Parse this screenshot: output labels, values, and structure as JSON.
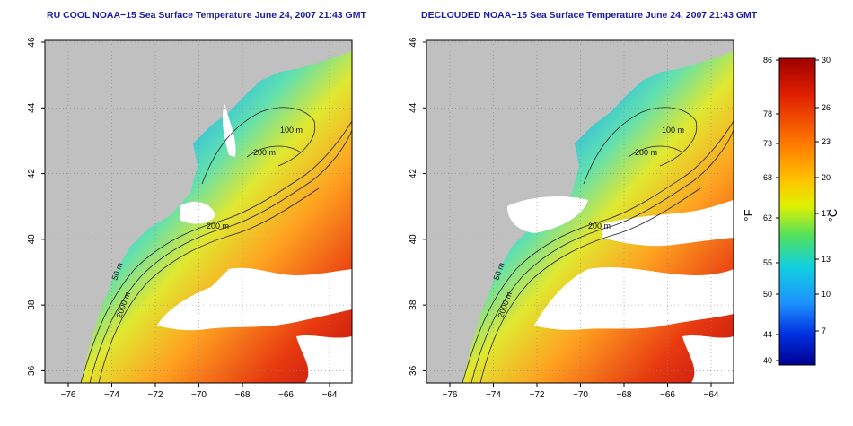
{
  "maps": [
    {
      "id": "left",
      "title": "RU COOL NOAA−15 Sea Surface Temperature June 24, 2007 21:43 GMT",
      "contour_labels": [
        "200 m",
        "100 m",
        "200 m",
        "50 m",
        "2000 m"
      ]
    },
    {
      "id": "right",
      "title": "DECLOUDED NOAA−15 Sea Surface Temperature June 24, 2007 21:43 GMT",
      "contour_labels": [
        "200 m",
        "100 m",
        "200 m",
        "50 m",
        "2000 m"
      ]
    }
  ],
  "axes": {
    "x_ticks": [
      "−76",
      "−74",
      "−72",
      "−70",
      "−68",
      "−66",
      "−64"
    ],
    "y_ticks": [
      "46",
      "44",
      "42",
      "40",
      "38",
      "36"
    ]
  },
  "colorbar": {
    "fahrenheit_label": "°F",
    "celsius_label": "°C",
    "fahrenheit_ticks": [
      "86",
      "78",
      "73",
      "68",
      "62",
      "55",
      "50",
      "44",
      "40"
    ],
    "celsius_ticks": [
      "30",
      "26",
      "23",
      "20",
      "17",
      "13",
      "10",
      "7"
    ],
    "colors": [
      "#b30000",
      "#e83a00",
      "#ff7a00",
      "#ffc400",
      "#e8f000",
      "#58e858",
      "#10d0e0",
      "#1e90ff",
      "#0030e0",
      "#000090"
    ]
  }
}
